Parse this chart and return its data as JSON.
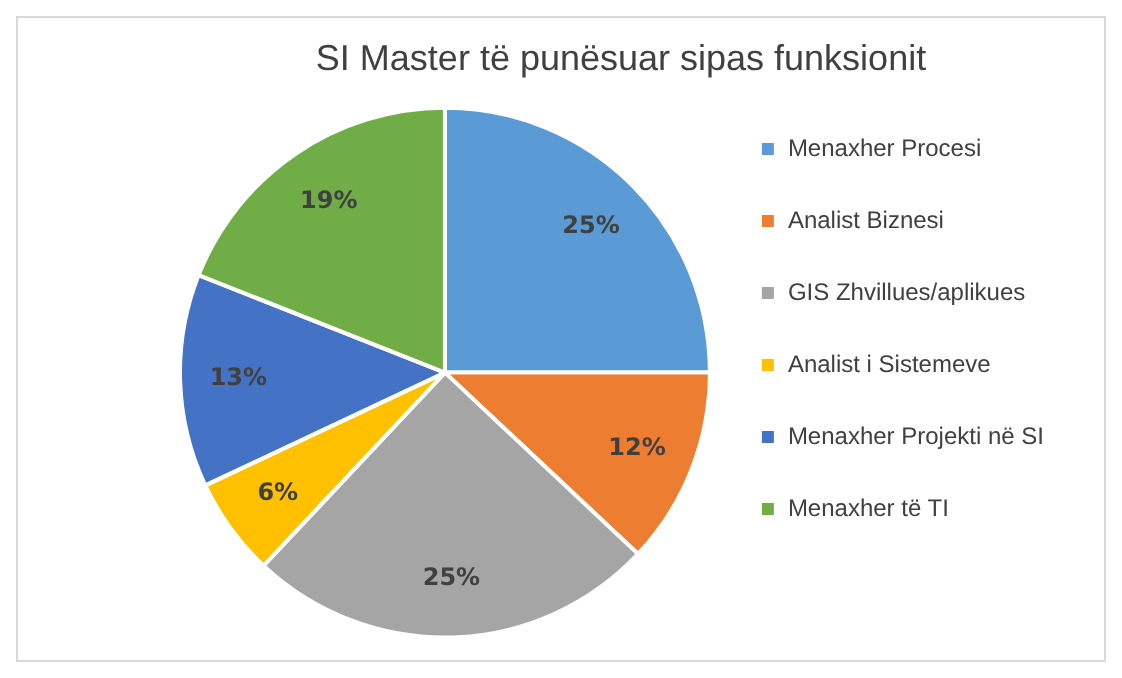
{
  "chart_data": {
    "type": "pie",
    "title": "SI Master të punësuar sipas funksionit",
    "categories": [
      "Menaxher Procesi",
      "Analist Biznesi",
      "GIS Zhvillues/aplikues",
      "Analist i Sistemeve",
      "Menaxher Projekti në SI",
      "Menaxher të TI"
    ],
    "values": [
      25,
      12,
      25,
      6,
      13,
      19
    ],
    "colors": [
      "#5b9bd5",
      "#ed7d31",
      "#a5a5a5",
      "#ffc000",
      "#4472c4",
      "#70ad47"
    ],
    "value_labels": [
      "25%",
      "12%",
      "25%",
      "6%",
      "13%",
      "19%"
    ],
    "legend": "right"
  }
}
